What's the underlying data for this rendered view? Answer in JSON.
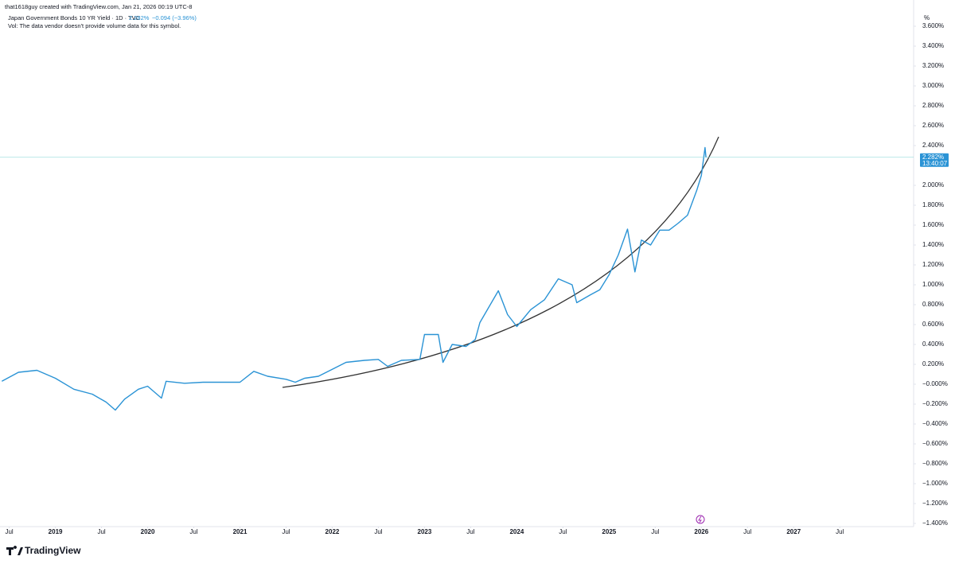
{
  "chart_data": {
    "type": "line",
    "credit": "that1618guy created with TradingView.com, Jan 21, 2026 00:19 UTC-8",
    "change": "−0.094 (−3.96%)",
    "volume_note": "Vol: The data vendor doesn't provide volume data for this symbol.",
    "unit": "%",
    "brand": "TradingView",
    "x": [
      2018.42,
      2018.6,
      2018.8,
      2019.0,
      2019.2,
      2019.4,
      2019.55,
      2019.65,
      2019.75,
      2019.9,
      2020.0,
      2020.15,
      2020.2,
      2020.4,
      2020.6,
      2020.8,
      2021.0,
      2021.15,
      2021.3,
      2021.5,
      2021.6,
      2021.7,
      2021.85,
      2022.0,
      2022.15,
      2022.35,
      2022.5,
      2022.6,
      2022.75,
      2022.95,
      2023.0,
      2023.15,
      2023.2,
      2023.3,
      2023.45,
      2023.55,
      2023.6,
      2023.8,
      2023.9,
      2024.0,
      2024.15,
      2024.3,
      2024.45,
      2024.6,
      2024.65,
      2024.8,
      2024.9,
      2025.0,
      2025.1,
      2025.2,
      2025.28,
      2025.35,
      2025.45,
      2025.55,
      2025.65,
      2025.75,
      2025.85,
      2025.95,
      2026.0,
      2026.04,
      2026.05
    ],
    "series": [
      {
        "name": "Japan Government Bonds 10 YR Yield · 1D · TVC",
        "color": "#2a93d5",
        "values": [
          0.03,
          0.12,
          0.14,
          0.06,
          -0.05,
          -0.1,
          -0.18,
          -0.26,
          -0.15,
          -0.05,
          -0.02,
          -0.14,
          0.03,
          0.01,
          0.02,
          0.02,
          0.02,
          0.13,
          0.08,
          0.05,
          0.02,
          0.06,
          0.08,
          0.15,
          0.22,
          0.24,
          0.25,
          0.18,
          0.24,
          0.25,
          0.5,
          0.5,
          0.22,
          0.4,
          0.38,
          0.45,
          0.62,
          0.94,
          0.7,
          0.58,
          0.75,
          0.85,
          1.06,
          1.0,
          0.82,
          0.9,
          0.95,
          1.1,
          1.3,
          1.56,
          1.13,
          1.45,
          1.4,
          1.55,
          1.55,
          1.62,
          1.7,
          1.95,
          2.1,
          2.38,
          2.282
        ]
      }
    ],
    "price_line": {
      "value": 2.282,
      "label": "2.282%"
    },
    "countdown": "13:40:07",
    "xlim": [
      2018.4,
      2028.3
    ],
    "xticks": [
      {
        "value": 2018.5,
        "label": "Jul"
      },
      {
        "value": 2019,
        "label": "2019"
      },
      {
        "value": 2019.5,
        "label": "Jul"
      },
      {
        "value": 2020,
        "label": "2020"
      },
      {
        "value": 2020.5,
        "label": "Jul"
      },
      {
        "value": 2021,
        "label": "2021"
      },
      {
        "value": 2021.5,
        "label": "Jul"
      },
      {
        "value": 2022,
        "label": "2022"
      },
      {
        "value": 2022.5,
        "label": "Jul"
      },
      {
        "value": 2023,
        "label": "2023"
      },
      {
        "value": 2023.5,
        "label": "Jul"
      },
      {
        "value": 2024,
        "label": "2024"
      },
      {
        "value": 2024.5,
        "label": "Jul"
      },
      {
        "value": 2025,
        "label": "2025"
      },
      {
        "value": 2025.5,
        "label": "Jul"
      },
      {
        "value": 2026,
        "label": "2026"
      },
      {
        "value": 2026.5,
        "label": "Jul"
      },
      {
        "value": 2027,
        "label": "2027"
      },
      {
        "value": 2027.5,
        "label": "Jul"
      }
    ],
    "ylim": [
      -1.432,
      3.688
    ],
    "yticks": [
      {
        "value": 3.6,
        "label": "3.600%"
      },
      {
        "value": 3.4,
        "label": "3.400%"
      },
      {
        "value": 3.2,
        "label": "3.200%"
      },
      {
        "value": 3.0,
        "label": "3.000%"
      },
      {
        "value": 2.8,
        "label": "2.800%"
      },
      {
        "value": 2.6,
        "label": "2.600%"
      },
      {
        "value": 2.4,
        "label": "2.400%"
      },
      {
        "value": 2.0,
        "label": "2.000%"
      },
      {
        "value": 1.8,
        "label": "1.800%"
      },
      {
        "value": 1.6,
        "label": "1.600%"
      },
      {
        "value": 1.4,
        "label": "1.400%"
      },
      {
        "value": 1.2,
        "label": "1.200%"
      },
      {
        "value": 1.0,
        "label": "1.000%"
      },
      {
        "value": 0.8,
        "label": "0.800%"
      },
      {
        "value": 0.6,
        "label": "0.600%"
      },
      {
        "value": 0.4,
        "label": "0.400%"
      },
      {
        "value": 0.2,
        "label": "0.200%"
      },
      {
        "value": 0,
        "label": "−0.000%"
      },
      {
        "value": -0.2,
        "label": "−0.200%"
      },
      {
        "value": -0.4,
        "label": "−0.400%"
      },
      {
        "value": -0.6,
        "label": "−0.600%"
      },
      {
        "value": -0.8,
        "label": "−0.800%"
      },
      {
        "value": -1.0,
        "label": "−1.000%"
      },
      {
        "value": -1.2,
        "label": "−1.200%"
      },
      {
        "value": -1.4,
        "label": "−1.400%"
      }
    ],
    "grid": false
  }
}
